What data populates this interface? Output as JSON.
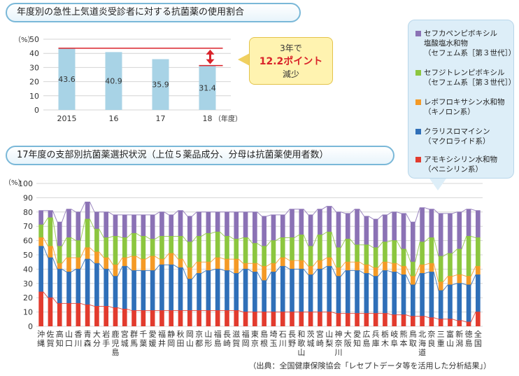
{
  "chart_data": [
    {
      "type": "bar",
      "title": "年度別の急性上気道炎受診者に対する抗菌薬の使用割合",
      "ylabel": "（%）",
      "xlabel": "（年度）",
      "ylim": [
        0,
        50
      ],
      "yticks": [
        "0",
        "10",
        "20",
        "30",
        "40",
        "50"
      ],
      "categories": [
        "2015",
        "16",
        "17",
        "18"
      ],
      "values": [
        43.6,
        40.9,
        35.9,
        31.4
      ],
      "value_labels": [
        "43.6",
        "40.9",
        "35.9",
        "31.4"
      ],
      "grid": true,
      "annotation": {
        "line1": "3年で",
        "line2": "12.2ポイント",
        "line3": "減少"
      },
      "colors": {
        "bar": "#a8d3e6",
        "line": "#d9232a"
      }
    },
    {
      "type": "bar",
      "stacked": true,
      "title": "17年度の支部別抗菌薬選択状況（上位５薬品成分、分母は抗菌薬使用者数）",
      "ylabel": "（%）",
      "ylim": [
        0,
        100
      ],
      "yticks": [
        "0",
        "10",
        "20",
        "30",
        "40",
        "50",
        "60",
        "70",
        "80",
        "90",
        "100"
      ],
      "grid": true,
      "categories": [
        "沖縄",
        "佐賀",
        "高知",
        "山口",
        "香川",
        "青森",
        "大分",
        "岩手",
        "鹿児島",
        "宮城",
        "群馬",
        "千葉",
        "愛媛",
        "福井",
        "静岡",
        "秋田",
        "岡山",
        "京都",
        "山形",
        "福島",
        "長崎",
        "滋賀",
        "福岡",
        "東京",
        "島根",
        "埼玉",
        "石川",
        "長野",
        "和歌山",
        "茨城",
        "宮崎",
        "山梨",
        "神奈川",
        "大阪",
        "愛知",
        "広島",
        "兵庫",
        "栃木",
        "岐阜",
        "熊本",
        "鳥取",
        "北海道",
        "奈良",
        "三重",
        "富山",
        "新潟",
        "徳島",
        "全国"
      ],
      "series": [
        {
          "name": "アモキシシリン水和物（ペニシリン系）",
          "color": "#e23b2e",
          "values": [
            24,
            20,
            16,
            16,
            16,
            15,
            14,
            14,
            13,
            12,
            11,
            11,
            11,
            11,
            11,
            11,
            11,
            11,
            11,
            11,
            11,
            11,
            10,
            10,
            10,
            10,
            10,
            10,
            10,
            10,
            10,
            10,
            9,
            9,
            9,
            9,
            9,
            9,
            8,
            8,
            7,
            7,
            6,
            5,
            5,
            4,
            3,
            10
          ]
        },
        {
          "name": "クラリスロマイシン（マクロライド系）",
          "color": "#2f6fb8",
          "values": [
            32,
            28,
            24,
            22,
            24,
            32,
            30,
            26,
            22,
            30,
            28,
            28,
            28,
            32,
            32,
            30,
            22,
            26,
            28,
            29,
            28,
            26,
            30,
            28,
            22,
            28,
            32,
            30,
            30,
            26,
            30,
            32,
            26,
            30,
            30,
            28,
            26,
            30,
            30,
            28,
            22,
            30,
            32,
            20,
            24,
            26,
            26,
            26
          ]
        },
        {
          "name": "レボフロキサシン水和物（キノロン系）",
          "color": "#f49a26",
          "values": [
            6,
            8,
            4,
            10,
            8,
            8,
            8,
            8,
            8,
            6,
            10,
            8,
            10,
            4,
            8,
            6,
            8,
            8,
            6,
            8,
            8,
            10,
            4,
            6,
            10,
            6,
            6,
            6,
            6,
            6,
            6,
            6,
            6,
            6,
            6,
            6,
            6,
            6,
            6,
            6,
            6,
            6,
            6,
            6,
            6,
            6,
            6,
            6
          ]
        },
        {
          "name": "セフジトレンピボキシル（セフェム系［第３世代］）",
          "color": "#8cc63f",
          "values": [
            9,
            20,
            12,
            14,
            12,
            20,
            16,
            14,
            20,
            14,
            16,
            16,
            12,
            16,
            12,
            16,
            18,
            18,
            20,
            18,
            16,
            14,
            18,
            14,
            14,
            16,
            14,
            16,
            18,
            14,
            18,
            18,
            14,
            16,
            12,
            14,
            14,
            14,
            16,
            12,
            10,
            16,
            18,
            18,
            16,
            18,
            28,
            20
          ]
        },
        {
          "name": "セフカペンピボキシル塩酸塩水和物（セフェム系［第３世代］）",
          "color": "#8b72b5",
          "values": [
            10,
            5,
            17,
            20,
            20,
            12,
            12,
            18,
            15,
            16,
            13,
            15,
            17,
            17,
            15,
            18,
            18,
            17,
            15,
            14,
            17,
            19,
            18,
            22,
            21,
            18,
            16,
            20,
            18,
            22,
            18,
            18,
            25,
            18,
            25,
            20,
            20,
            19,
            20,
            25,
            28,
            24,
            20,
            30,
            28,
            26,
            19,
            19
          ]
        }
      ],
      "source": "（出典：全国健康保険協会「レセプトデータ等を活用した分析結果」）"
    }
  ],
  "legend": [
    {
      "line1": "セフカペンピボキシル",
      "line2": "塩酸塩水和物",
      "line3": "（セフェム系［第３世代］）"
    },
    {
      "line1": "セフジトレンピボキシル",
      "line2": "（セフェム系［第３世代］）"
    },
    {
      "line1": "レボフロキサシン水和物",
      "line2": "（キノロン系）"
    },
    {
      "line1": "クラリスロマイシン",
      "line2": "（マクロライド系）"
    },
    {
      "line1": "アモキシシリン水和物",
      "line2": "（ペニシリン系）"
    }
  ]
}
